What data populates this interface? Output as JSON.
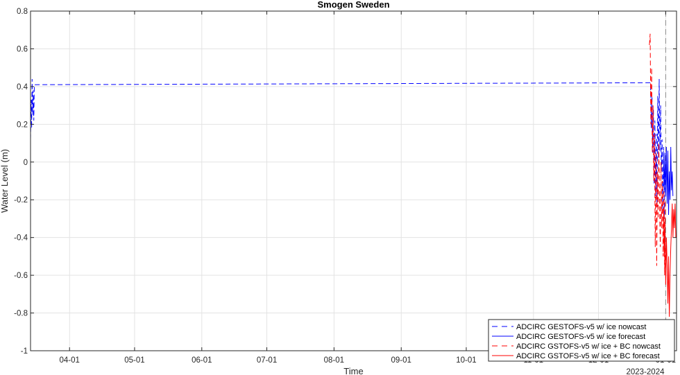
{
  "chart_data": {
    "type": "line",
    "title": "Smogen Sweden",
    "xlabel": "Time",
    "ylabel": "Water Level (m)",
    "ylim": [
      -1,
      0.8
    ],
    "yticks": [
      0.8,
      0.6,
      0.4,
      0.2,
      0,
      -0.2,
      -0.4,
      -0.6,
      -0.8,
      -1
    ],
    "ytick_labels": [
      "0.8",
      "0.6",
      "0.4",
      "0.2",
      "0",
      "-0.2",
      "-0.4",
      "-0.6",
      "-0.8",
      "-1"
    ],
    "xlim": [
      "2023-03-14",
      "2024-01-06"
    ],
    "xtick_dates": [
      "2023-04-01",
      "2023-05-01",
      "2023-06-01",
      "2023-07-01",
      "2023-08-01",
      "2023-09-01",
      "2023-10-01",
      "2023-11-01",
      "2023-12-01",
      "2024-01-01"
    ],
    "xtick_labels": [
      "04-01",
      "05-01",
      "06-01",
      "07-01",
      "08-01",
      "09-01",
      "10-01",
      "11-01",
      "12-01",
      "01-01"
    ],
    "x_corner_label": "2023-2024",
    "grid": true,
    "legend_position": "bottom-right",
    "legend": [
      "ADCIRC GESTOFS-v5 w/ ice nowcast",
      "ADCIRC GESTOFS-v5 w/ ice forecast",
      "ADCIRC GSTOFS-v5 w/ ice + BC nowcast",
      "ADCIRC GSTOFS-v5 w/ ice + BC forecast"
    ],
    "colors": {
      "blue": "#0000ff",
      "red": "#ff0000",
      "gray_dashed": "#8c8c8c"
    },
    "vertical_marker": {
      "x": "2024-01-01",
      "style": "dashed"
    },
    "series": [
      {
        "name": "ADCIRC GESTOFS-v5 w/ ice nowcast",
        "color": "#0000ff",
        "dash": true,
        "x": [
          "2023-03-14T00:00",
          "2023-03-14T06:00",
          "2023-03-14T12:00",
          "2023-03-14T18:00",
          "2023-03-15T00:00",
          "2023-03-15T06:00",
          "2023-03-15T12:00",
          "2023-03-15T18:00",
          "2023-12-25T00:00",
          "2023-12-25T08:00",
          "2023-12-25T16:00",
          "2023-12-26T00:00",
          "2023-12-26T08:00",
          "2023-12-26T16:00",
          "2023-12-27T00:00",
          "2023-12-27T08:00",
          "2023-12-27T16:00",
          "2023-12-28T00:00",
          "2023-12-28T08:00",
          "2023-12-28T16:00",
          "2023-12-29T00:00",
          "2023-12-29T08:00",
          "2023-12-29T16:00",
          "2023-12-30T00:00",
          "2023-12-30T08:00",
          "2023-12-30T16:00",
          "2023-12-31T00:00",
          "2023-12-31T08:00",
          "2023-12-31T16:00"
        ],
        "y": [
          0.12,
          0.33,
          0.18,
          0.44,
          0.25,
          0.38,
          0.22,
          0.41,
          0.42,
          0.18,
          0.35,
          0.05,
          0.28,
          -0.12,
          0.22,
          -0.18,
          0.15,
          -0.24,
          0.35,
          0.02,
          0.44,
          0.06,
          0.3,
          -0.05,
          0.12,
          -0.26,
          0.08,
          -0.3,
          -0.02
        ]
      },
      {
        "name": "ADCIRC GESTOFS-v5 w/ ice forecast",
        "color": "#0000ff",
        "dash": false,
        "x": [
          "2023-12-31T00:00",
          "2023-12-31T08:00",
          "2023-12-31T16:00",
          "2024-01-01T00:00",
          "2024-01-01T08:00",
          "2024-01-01T16:00",
          "2024-01-02T00:00",
          "2024-01-02T08:00",
          "2024-01-02T16:00",
          "2024-01-03T00:00",
          "2024-01-03T08:00",
          "2024-01-03T16:00",
          "2024-01-04T00:00",
          "2024-01-04T08:00"
        ],
        "y": [
          0.02,
          -0.15,
          0.05,
          -0.18,
          0.08,
          -0.22,
          0.06,
          -0.28,
          -0.05,
          -0.2,
          0.08,
          -0.15,
          -0.05,
          -0.18
        ]
      },
      {
        "name": "ADCIRC GSTOFS-v5 w/ ice + BC nowcast",
        "color": "#ff0000",
        "dash": true,
        "x": [
          "2023-12-24T12:00",
          "2023-12-24T20:00",
          "2023-12-25T04:00",
          "2023-12-25T12:00",
          "2023-12-25T20:00",
          "2023-12-26T04:00",
          "2023-12-26T12:00",
          "2023-12-26T20:00",
          "2023-12-27T04:00",
          "2023-12-27T12:00",
          "2023-12-27T20:00",
          "2023-12-28T04:00",
          "2023-12-28T12:00",
          "2023-12-28T20:00",
          "2023-12-29T04:00",
          "2023-12-29T12:00",
          "2023-12-29T20:00",
          "2023-12-30T04:00",
          "2023-12-30T12:00",
          "2023-12-30T20:00",
          "2023-12-31T04:00",
          "2023-12-31T12:00",
          "2023-12-31T20:00"
        ],
        "y": [
          0.62,
          0.68,
          0.2,
          0.5,
          0.05,
          0.3,
          -0.1,
          0.15,
          -0.45,
          0.05,
          -0.55,
          -0.05,
          -0.3,
          0.1,
          -0.2,
          -0.45,
          0.0,
          -0.35,
          -0.1,
          -0.5,
          -0.15,
          -0.6,
          -0.2
        ]
      },
      {
        "name": "ADCIRC GSTOFS-v5 w/ ice + BC forecast",
        "color": "#ff0000",
        "dash": false,
        "x": [
          "2023-12-31T00:00",
          "2023-12-31T08:00",
          "2023-12-31T16:00",
          "2024-01-01T00:00",
          "2024-01-01T08:00",
          "2024-01-01T16:00",
          "2024-01-02T00:00",
          "2024-01-02T08:00",
          "2024-01-02T16:00",
          "2024-01-03T00:00",
          "2024-01-03T08:00",
          "2024-01-03T16:00",
          "2024-01-04T00:00",
          "2024-01-04T08:00",
          "2024-01-04T16:00",
          "2024-01-05T00:00",
          "2024-01-05T08:00",
          "2024-01-05T16:00"
        ],
        "y": [
          -0.25,
          -0.5,
          -0.3,
          -0.65,
          -0.4,
          -0.55,
          -0.75,
          -0.5,
          -0.82,
          -0.6,
          -0.45,
          -0.35,
          -0.22,
          -0.4,
          -0.25,
          -0.35,
          -0.22,
          -0.4
        ]
      }
    ]
  }
}
